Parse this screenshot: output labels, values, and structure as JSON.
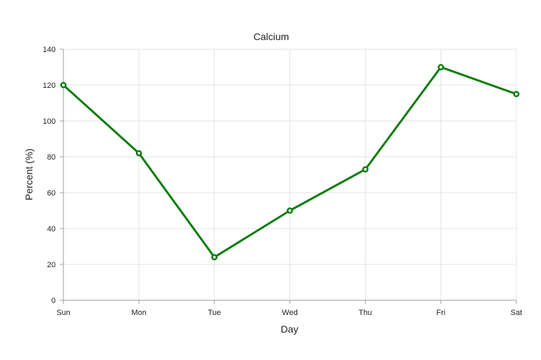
{
  "chart_data": {
    "type": "line",
    "title": "Calcium",
    "xlabel": "Day",
    "ylabel": "Percent (%)",
    "categories": [
      "Sun",
      "Mon",
      "Tue",
      "Wed",
      "Thu",
      "Fri",
      "Sat"
    ],
    "series": [
      {
        "name": "Calcium",
        "values": [
          120,
          82,
          24,
          50,
          73,
          130,
          115
        ],
        "color": "#0a7d0a"
      }
    ],
    "ylim": [
      0,
      140
    ],
    "yticks": [
      0,
      20,
      40,
      60,
      80,
      100,
      120,
      140
    ],
    "grid": true,
    "legend": "none"
  }
}
